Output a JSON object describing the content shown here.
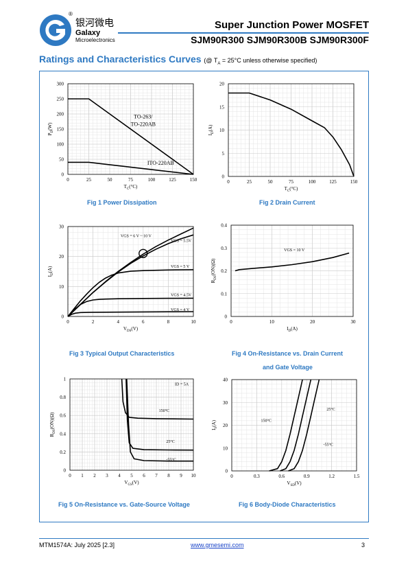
{
  "header": {
    "brand_cn": "银河微电",
    "brand_en": "Galaxy",
    "brand_sub": "Microelectronics",
    "registered": "®",
    "title": "Super Junction Power MOSFET",
    "parts": "SJM90R300 SJM90R300B SJM90R300F"
  },
  "section": {
    "title": "Ratings and Characteristics Curves",
    "condition": "(@ T",
    "condition_sub": "A",
    "condition_rest": " = 25°C unless otherwise specified)"
  },
  "figures": {
    "fig1": "Fig 1    Power Dissipation",
    "fig2": "Fig 2    Drain Current",
    "fig3": "Fig 3    Typical Output Characteristics",
    "fig4a": "Fig 4    On-Resistance vs. Drain Current",
    "fig4b": "and Gate Voltage",
    "fig5": "Fig 5    On-Resistance vs. Gate-Source Voltage",
    "fig6": "Fig 6    Body-Diode Characteristics"
  },
  "chart_data": [
    {
      "type": "line",
      "xlabel": "TC(°C)",
      "ylabel": "PD(W)",
      "xlim": [
        0,
        150
      ],
      "ylim": [
        0,
        300
      ],
      "xticks": [
        0,
        25,
        50,
        75,
        100,
        125,
        150
      ],
      "yticks": [
        0,
        50,
        100,
        150,
        200,
        250,
        300
      ],
      "grid": true,
      "series": [
        {
          "name": "TO-263/\nTO-220AB",
          "x": [
            0,
            25,
            150
          ],
          "y": [
            250,
            250,
            0
          ]
        },
        {
          "name": "ITO-220AB",
          "x": [
            0,
            25,
            150
          ],
          "y": [
            40,
            40,
            0
          ]
        }
      ],
      "annotations": [
        "TO-263/",
        "TO-220AB",
        "ITO-220AB"
      ]
    },
    {
      "type": "line",
      "xlabel": "TC(°C)",
      "ylabel": "ID(A)",
      "xlim": [
        0,
        150
      ],
      "ylim": [
        0,
        20
      ],
      "xticks": [
        0,
        25,
        50,
        75,
        100,
        125,
        150
      ],
      "yticks": [
        0,
        5,
        10,
        15,
        20
      ],
      "grid": true,
      "series": [
        {
          "x": [
            0,
            25,
            50,
            75,
            100,
            115,
            125,
            135,
            145,
            150
          ],
          "y": [
            18,
            18,
            16.5,
            14.5,
            12,
            10.5,
            8.5,
            5.8,
            2.5,
            0
          ]
        }
      ]
    },
    {
      "type": "line",
      "xlabel": "VDS(V)",
      "ylabel": "ID(A)",
      "xlim": [
        0,
        10
      ],
      "ylim": [
        0,
        30
      ],
      "xticks": [
        0,
        2,
        4,
        6,
        8,
        10
      ],
      "yticks": [
        0,
        10,
        20,
        30
      ],
      "grid": true,
      "series": [
        {
          "name": "VGS = 6 V ~ 10 V",
          "x": [
            0,
            1,
            2,
            3,
            4,
            5,
            6,
            7,
            8,
            9,
            10
          ],
          "y": [
            0,
            4,
            8,
            11.6,
            15,
            18,
            20.8,
            23.3,
            25.5,
            27.5,
            29.5
          ]
        },
        {
          "name": "VGS = 5.5V",
          "x": [
            0,
            1,
            2,
            3,
            4,
            5,
            6,
            7,
            8,
            9,
            10
          ],
          "y": [
            0,
            4,
            8,
            11.5,
            14.8,
            17.7,
            20.2,
            22.4,
            24.3,
            25.9,
            27.2
          ]
        },
        {
          "name": "VGS = 5 V",
          "x": [
            0,
            0.5,
            1,
            1.5,
            2,
            2.5,
            3,
            3.5,
            4,
            5,
            6,
            8,
            10
          ],
          "y": [
            0,
            2.6,
            5.2,
            7.5,
            9.6,
            11.4,
            12.8,
            13.8,
            14.5,
            15.1,
            15.3,
            15.5,
            15.6
          ]
        },
        {
          "name": "VGS = 4.5V",
          "x": [
            0,
            0.5,
            1,
            1.5,
            2,
            2.5,
            3,
            4,
            6,
            8,
            10
          ],
          "y": [
            0,
            2.2,
            4.0,
            5.0,
            5.5,
            5.7,
            5.8,
            5.9,
            6.0,
            6.05,
            6.1
          ]
        },
        {
          "name": "VGS = 4 V",
          "x": [
            0,
            0.3,
            0.6,
            1,
            2,
            4,
            6,
            8,
            10
          ],
          "y": [
            0,
            0.7,
            1.1,
            1.3,
            1.4,
            1.45,
            1.5,
            1.55,
            1.6
          ]
        }
      ],
      "annotations": [
        "VGS = 6 V ~ 10 V",
        "VGS = 5.5V",
        "VGS = 5 V",
        "VGS = 4.5V",
        "VGS = 4 V"
      ]
    },
    {
      "type": "line",
      "xlabel": "ID(A)",
      "ylabel": "RDS(ON)(Ω)",
      "xlim": [
        0,
        30
      ],
      "ylim": [
        0,
        0.4
      ],
      "xticks": [
        0,
        10,
        20,
        30
      ],
      "yticks": [
        0,
        0.1,
        0.2,
        0.3,
        0.4
      ],
      "grid": true,
      "series": [
        {
          "name": "VGS = 10 V",
          "x": [
            1,
            2,
            5,
            10,
            15,
            20,
            25,
            29
          ],
          "y": [
            0.2,
            0.205,
            0.21,
            0.217,
            0.227,
            0.24,
            0.258,
            0.278
          ]
        }
      ],
      "annotations": [
        "VGS = 10 V"
      ]
    },
    {
      "type": "line",
      "xlabel": "VGS(V)",
      "ylabel": "RDS(ON)(Ω)",
      "xlim": [
        0,
        10
      ],
      "ylim": [
        0,
        1
      ],
      "xticks": [
        0,
        1,
        2,
        3,
        4,
        5,
        6,
        7,
        8,
        9,
        10
      ],
      "yticks": [
        0,
        0.2,
        0.4,
        0.6,
        0.8,
        1
      ],
      "grid": true,
      "series": [
        {
          "name": "150°C",
          "x": [
            4.2,
            4.3,
            4.5,
            4.8,
            5.5,
            7,
            10
          ],
          "y": [
            1.0,
            0.75,
            0.63,
            0.58,
            0.57,
            0.565,
            0.56
          ]
        },
        {
          "name": "25°C",
          "x": [
            4.55,
            4.65,
            4.8,
            5.1,
            6,
            8,
            10
          ],
          "y": [
            1.0,
            0.55,
            0.3,
            0.24,
            0.225,
            0.222,
            0.22
          ]
        },
        {
          "name": "-55°C",
          "x": [
            4.6,
            4.75,
            4.9,
            5.2,
            6,
            8,
            10
          ],
          "y": [
            1.0,
            0.5,
            0.2,
            0.125,
            0.105,
            0.1,
            0.1
          ]
        }
      ],
      "annotations": [
        "ID = 5A",
        "150°C",
        "25°C",
        "-55°C"
      ]
    },
    {
      "type": "line",
      "xlabel": "VSD(V)",
      "ylabel": "IS(A)",
      "xlim": [
        0,
        1.5
      ],
      "ylim": [
        0,
        40
      ],
      "xticks": [
        0,
        0.3,
        0.6,
        0.9,
        1.2,
        1.5
      ],
      "yticks": [
        0,
        10,
        20,
        30,
        40
      ],
      "grid": true,
      "series": [
        {
          "name": "150°C",
          "x": [
            0.45,
            0.55,
            0.6,
            0.65,
            0.7,
            0.75,
            0.8,
            0.85
          ],
          "y": [
            0,
            1,
            4,
            9,
            16,
            24,
            32,
            40
          ]
        },
        {
          "name": "25°C",
          "x": [
            0.58,
            0.65,
            0.7,
            0.75,
            0.8,
            0.85,
            0.9,
            0.95
          ],
          "y": [
            0,
            1,
            4,
            9,
            16,
            24,
            32,
            40
          ]
        },
        {
          "name": "-55°C",
          "x": [
            0.68,
            0.75,
            0.8,
            0.85,
            0.9,
            0.95,
            1.0,
            1.05
          ],
          "y": [
            0,
            1,
            4,
            9,
            16,
            24,
            32,
            40
          ]
        }
      ],
      "annotations": [
        "150°C",
        "25°C",
        "-55°C"
      ]
    }
  ],
  "footer": {
    "doc_id": "MTM1574A: July 2025 [2.3]",
    "url": "www.gmesemi.com",
    "page": "3"
  },
  "colors": {
    "accent": "#2e79c2",
    "grid": "#cccccc",
    "curve": "#000000"
  }
}
